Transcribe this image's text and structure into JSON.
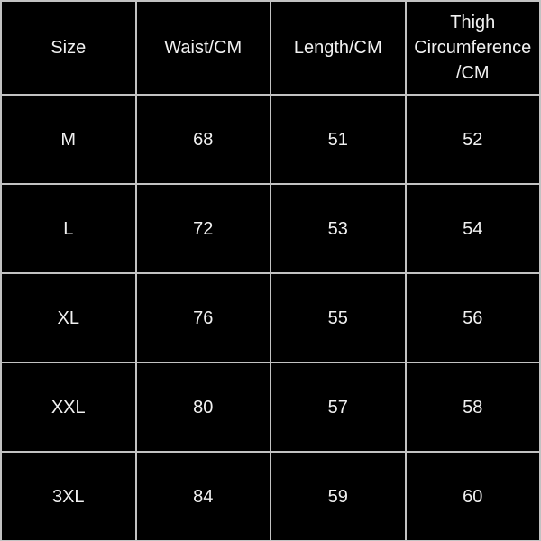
{
  "table": {
    "columns": [
      "Size",
      "Waist/CM",
      "Length/CM",
      "Thigh Circumference/CM"
    ],
    "rows": [
      [
        "M",
        "68",
        "51",
        "52"
      ],
      [
        "L",
        "72",
        "53",
        "54"
      ],
      [
        "XL",
        "76",
        "55",
        "56"
      ],
      [
        "XXL",
        "80",
        "57",
        "58"
      ],
      [
        "3XL",
        "84",
        "59",
        "60"
      ]
    ]
  },
  "colors": {
    "background": "#000000",
    "grid_line": "#c2c2c2",
    "text": "#f1f1f1"
  }
}
